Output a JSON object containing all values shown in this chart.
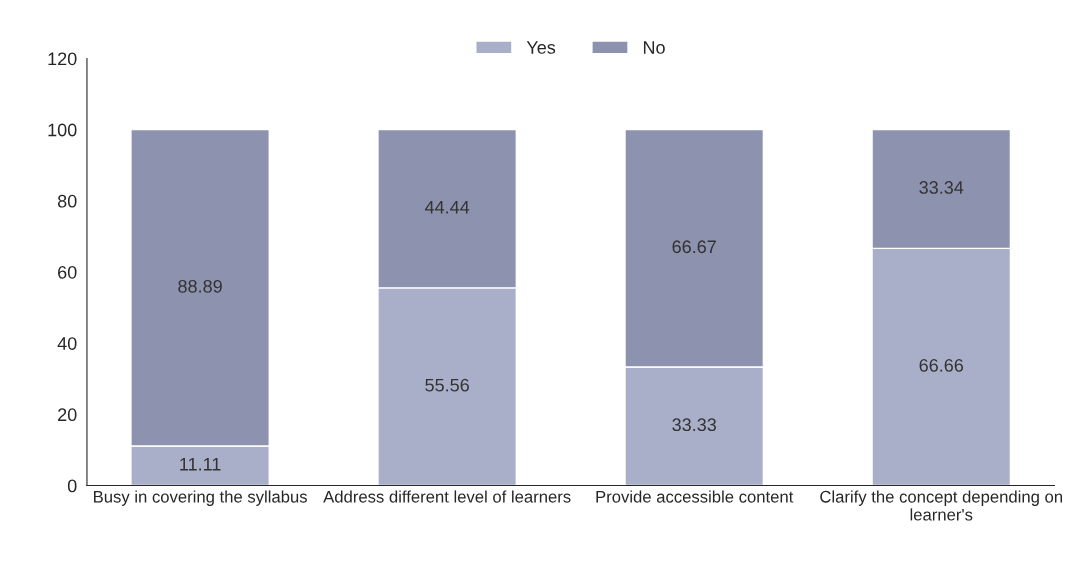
{
  "chart_data": {
    "type": "bar",
    "stacked": true,
    "categories": [
      "Busy in covering the syllabus",
      "Address different level of learners",
      "Provide accessible content",
      "Clarify the concept depending on learner's"
    ],
    "series": [
      {
        "name": "Yes",
        "color": "#a9aec9",
        "values": [
          11.11,
          55.56,
          33.33,
          66.66
        ]
      },
      {
        "name": "No",
        "color": "#8d92ae",
        "values": [
          88.89,
          44.44,
          66.67,
          33.34
        ]
      }
    ],
    "ylim": [
      0,
      120
    ],
    "yticks": [
      0,
      20,
      40,
      60,
      80,
      100,
      120
    ],
    "data_labels": true,
    "legend": "top",
    "grid": false
  }
}
